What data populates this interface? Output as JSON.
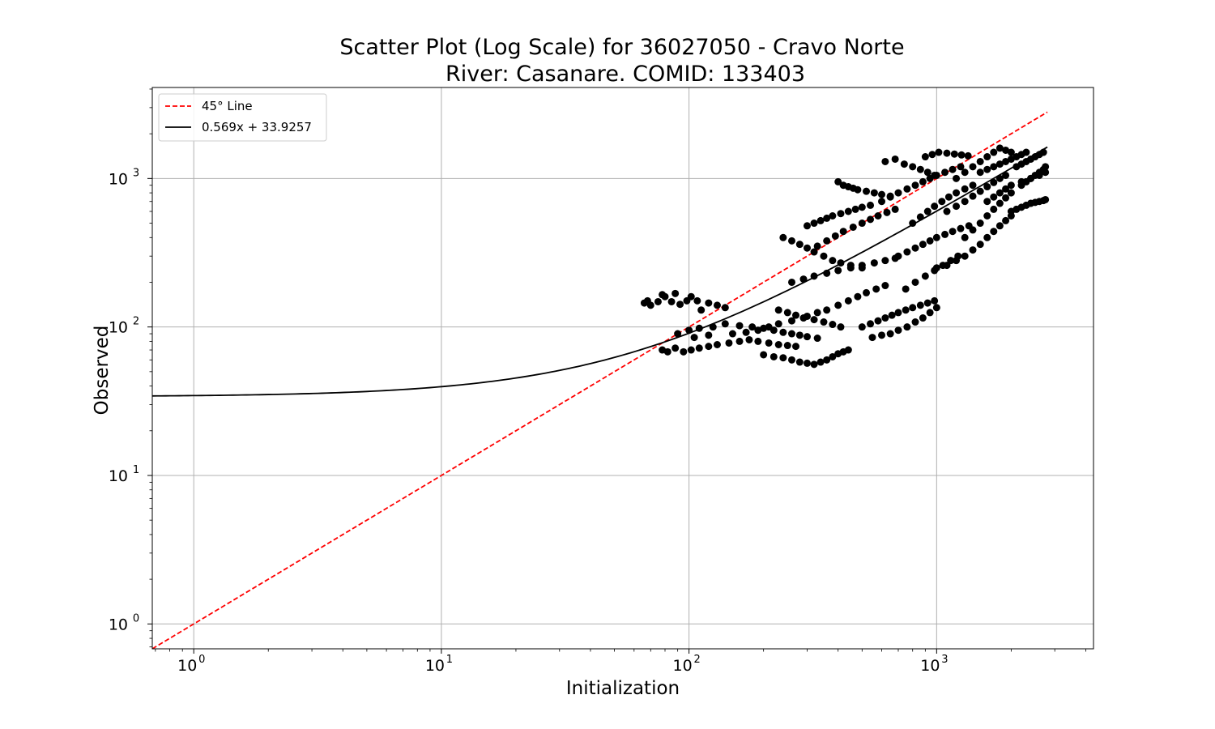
{
  "chart_data": {
    "type": "scatter",
    "title_line1": "Scatter Plot (Log Scale) for 36027050 - Cravo Norte",
    "title_line2": "River: Casanare. COMID: 133403",
    "xlabel": "Initialization",
    "ylabel": "Observed",
    "x_scale": "log",
    "y_scale": "log",
    "xlim": [
      0.68,
      4300
    ],
    "ylim": [
      0.68,
      4100
    ],
    "grid": true,
    "legend_position": "top-left",
    "x_ticks": [
      {
        "base": "10",
        "exp": "0",
        "value": 1
      },
      {
        "base": "10",
        "exp": "1",
        "value": 10
      },
      {
        "base": "10",
        "exp": "2",
        "value": 100
      },
      {
        "base": "10",
        "exp": "3",
        "value": 1000
      }
    ],
    "y_ticks": [
      {
        "base": "10",
        "exp": "0",
        "value": 1
      },
      {
        "base": "10",
        "exp": "1",
        "value": 10
      },
      {
        "base": "10",
        "exp": "2",
        "value": 100
      },
      {
        "base": "10",
        "exp": "3",
        "value": 1000
      }
    ],
    "series": [
      {
        "name": "45° Line",
        "kind": "line",
        "color": "#ff0000",
        "dash": true,
        "x": [
          0.68,
          2800
        ],
        "y": [
          0.68,
          2800
        ]
      },
      {
        "name": "0.569x + 33.9257",
        "kind": "fit",
        "color": "#000000",
        "slope": 0.569,
        "intercept": 33.9257,
        "x_range": [
          0.68,
          2800
        ]
      }
    ],
    "scatter_color": "#000000",
    "scatter_points": [
      [
        66,
        145
      ],
      [
        68,
        150
      ],
      [
        70,
        140
      ],
      [
        75,
        148
      ],
      [
        78,
        165
      ],
      [
        80,
        160
      ],
      [
        85,
        148
      ],
      [
        88,
        168
      ],
      [
        92,
        142
      ],
      [
        98,
        150
      ],
      [
        102,
        160
      ],
      [
        108,
        150
      ],
      [
        112,
        130
      ],
      [
        120,
        145
      ],
      [
        130,
        140
      ],
      [
        140,
        135
      ],
      [
        78,
        70
      ],
      [
        82,
        68
      ],
      [
        88,
        72
      ],
      [
        95,
        68
      ],
      [
        102,
        70
      ],
      [
        110,
        72
      ],
      [
        120,
        74
      ],
      [
        130,
        76
      ],
      [
        145,
        78
      ],
      [
        160,
        80
      ],
      [
        175,
        82
      ],
      [
        190,
        80
      ],
      [
        210,
        78
      ],
      [
        230,
        76
      ],
      [
        250,
        75
      ],
      [
        270,
        74
      ],
      [
        90,
        90
      ],
      [
        100,
        95
      ],
      [
        110,
        98
      ],
      [
        125,
        100
      ],
      [
        140,
        105
      ],
      [
        160,
        102
      ],
      [
        180,
        100
      ],
      [
        200,
        98
      ],
      [
        220,
        95
      ],
      [
        240,
        92
      ],
      [
        260,
        90
      ],
      [
        280,
        88
      ],
      [
        300,
        86
      ],
      [
        330,
        84
      ],
      [
        105,
        85
      ],
      [
        120,
        88
      ],
      [
        150,
        90
      ],
      [
        170,
        92
      ],
      [
        190,
        95
      ],
      [
        210,
        100
      ],
      [
        230,
        105
      ],
      [
        260,
        110
      ],
      [
        290,
        115
      ],
      [
        320,
        112
      ],
      [
        350,
        108
      ],
      [
        380,
        104
      ],
      [
        410,
        100
      ],
      [
        200,
        65
      ],
      [
        220,
        63
      ],
      [
        240,
        62
      ],
      [
        260,
        60
      ],
      [
        280,
        58
      ],
      [
        300,
        57
      ],
      [
        320,
        56
      ],
      [
        340,
        58
      ],
      [
        360,
        60
      ],
      [
        380,
        63
      ],
      [
        400,
        66
      ],
      [
        420,
        68
      ],
      [
        440,
        70
      ],
      [
        230,
        130
      ],
      [
        250,
        125
      ],
      [
        270,
        120
      ],
      [
        300,
        118
      ],
      [
        330,
        125
      ],
      [
        360,
        130
      ],
      [
        400,
        140
      ],
      [
        440,
        150
      ],
      [
        480,
        160
      ],
      [
        520,
        170
      ],
      [
        570,
        180
      ],
      [
        620,
        190
      ],
      [
        240,
        400
      ],
      [
        260,
        380
      ],
      [
        280,
        360
      ],
      [
        300,
        340
      ],
      [
        320,
        320
      ],
      [
        350,
        300
      ],
      [
        380,
        280
      ],
      [
        410,
        270
      ],
      [
        450,
        260
      ],
      [
        500,
        250
      ],
      [
        260,
        200
      ],
      [
        290,
        210
      ],
      [
        320,
        220
      ],
      [
        360,
        230
      ],
      [
        400,
        240
      ],
      [
        450,
        250
      ],
      [
        500,
        260
      ],
      [
        560,
        270
      ],
      [
        620,
        280
      ],
      [
        680,
        290
      ],
      [
        300,
        480
      ],
      [
        320,
        500
      ],
      [
        340,
        520
      ],
      [
        360,
        540
      ],
      [
        380,
        560
      ],
      [
        410,
        580
      ],
      [
        440,
        600
      ],
      [
        470,
        620
      ],
      [
        500,
        640
      ],
      [
        540,
        660
      ],
      [
        330,
        350
      ],
      [
        360,
        380
      ],
      [
        390,
        410
      ],
      [
        420,
        440
      ],
      [
        460,
        470
      ],
      [
        500,
        500
      ],
      [
        540,
        530
      ],
      [
        580,
        560
      ],
      [
        630,
        590
      ],
      [
        680,
        620
      ],
      [
        400,
        950
      ],
      [
        420,
        900
      ],
      [
        440,
        880
      ],
      [
        460,
        860
      ],
      [
        480,
        840
      ],
      [
        520,
        820
      ],
      [
        560,
        800
      ],
      [
        600,
        780
      ],
      [
        650,
        760
      ],
      [
        500,
        100
      ],
      [
        540,
        105
      ],
      [
        580,
        110
      ],
      [
        620,
        115
      ],
      [
        660,
        120
      ],
      [
        700,
        125
      ],
      [
        750,
        130
      ],
      [
        800,
        135
      ],
      [
        860,
        140
      ],
      [
        920,
        145
      ],
      [
        980,
        150
      ],
      [
        550,
        85
      ],
      [
        600,
        88
      ],
      [
        650,
        90
      ],
      [
        700,
        95
      ],
      [
        760,
        100
      ],
      [
        820,
        108
      ],
      [
        880,
        115
      ],
      [
        940,
        125
      ],
      [
        1000,
        135
      ],
      [
        600,
        700
      ],
      [
        650,
        750
      ],
      [
        700,
        800
      ],
      [
        760,
        850
      ],
      [
        820,
        900
      ],
      [
        880,
        950
      ],
      [
        940,
        1000
      ],
      [
        1000,
        1050
      ],
      [
        1080,
        1100
      ],
      [
        1160,
        1150
      ],
      [
        1250,
        1200
      ],
      [
        620,
        1300
      ],
      [
        680,
        1350
      ],
      [
        740,
        1250
      ],
      [
        800,
        1200
      ],
      [
        860,
        1150
      ],
      [
        920,
        1100
      ],
      [
        980,
        1050
      ],
      [
        700,
        300
      ],
      [
        760,
        320
      ],
      [
        820,
        340
      ],
      [
        880,
        360
      ],
      [
        940,
        380
      ],
      [
        1000,
        400
      ],
      [
        1080,
        420
      ],
      [
        1160,
        440
      ],
      [
        1250,
        460
      ],
      [
        1350,
        480
      ],
      [
        750,
        180
      ],
      [
        820,
        200
      ],
      [
        900,
        220
      ],
      [
        980,
        240
      ],
      [
        1060,
        260
      ],
      [
        1140,
        280
      ],
      [
        1220,
        300
      ],
      [
        800,
        500
      ],
      [
        860,
        550
      ],
      [
        920,
        600
      ],
      [
        980,
        650
      ],
      [
        1050,
        700
      ],
      [
        1120,
        750
      ],
      [
        1200,
        800
      ],
      [
        1300,
        850
      ],
      [
        1400,
        900
      ],
      [
        900,
        1400
      ],
      [
        960,
        1450
      ],
      [
        1020,
        1500
      ],
      [
        1100,
        1480
      ],
      [
        1180,
        1460
      ],
      [
        1260,
        1440
      ],
      [
        1340,
        1420
      ],
      [
        1000,
        250
      ],
      [
        1100,
        260
      ],
      [
        1200,
        280
      ],
      [
        1300,
        300
      ],
      [
        1400,
        330
      ],
      [
        1500,
        360
      ],
      [
        1600,
        400
      ],
      [
        1700,
        440
      ],
      [
        1800,
        480
      ],
      [
        1900,
        520
      ],
      [
        2000,
        560
      ],
      [
        1100,
        600
      ],
      [
        1200,
        650
      ],
      [
        1300,
        700
      ],
      [
        1400,
        760
      ],
      [
        1500,
        820
      ],
      [
        1600,
        880
      ],
      [
        1700,
        940
      ],
      [
        1800,
        1000
      ],
      [
        1900,
        1050
      ],
      [
        1200,
        1000
      ],
      [
        1300,
        1100
      ],
      [
        1400,
        1200
      ],
      [
        1500,
        1300
      ],
      [
        1600,
        1400
      ],
      [
        1700,
        1500
      ],
      [
        1800,
        1600
      ],
      [
        1900,
        1550
      ],
      [
        2000,
        1500
      ],
      [
        1300,
        400
      ],
      [
        1400,
        450
      ],
      [
        1500,
        500
      ],
      [
        1600,
        560
      ],
      [
        1700,
        620
      ],
      [
        1800,
        680
      ],
      [
        1900,
        740
      ],
      [
        2000,
        800
      ],
      [
        1500,
        1100
      ],
      [
        1600,
        1150
      ],
      [
        1700,
        1200
      ],
      [
        1800,
        1250
      ],
      [
        1900,
        1300
      ],
      [
        2000,
        1350
      ],
      [
        2100,
        1400
      ],
      [
        2200,
        1450
      ],
      [
        2300,
        1500
      ],
      [
        1600,
        700
      ],
      [
        1700,
        750
      ],
      [
        1800,
        800
      ],
      [
        1900,
        850
      ],
      [
        2000,
        900
      ],
      [
        2200,
        950
      ],
      [
        2400,
        1000
      ],
      [
        2600,
        1050
      ],
      [
        2000,
        600
      ],
      [
        2100,
        620
      ],
      [
        2200,
        640
      ],
      [
        2300,
        660
      ],
      [
        2400,
        680
      ],
      [
        2500,
        690
      ],
      [
        2600,
        700
      ],
      [
        2700,
        710
      ],
      [
        2750,
        720
      ],
      [
        2100,
        1200
      ],
      [
        2200,
        1250
      ],
      [
        2300,
        1300
      ],
      [
        2400,
        1350
      ],
      [
        2500,
        1400
      ],
      [
        2600,
        1450
      ],
      [
        2700,
        1500
      ],
      [
        2750,
        1200
      ],
      [
        2750,
        1100
      ],
      [
        2200,
        900
      ],
      [
        2300,
        950
      ],
      [
        2400,
        1000
      ],
      [
        2500,
        1050
      ],
      [
        2600,
        1100
      ],
      [
        2700,
        1150
      ]
    ]
  }
}
